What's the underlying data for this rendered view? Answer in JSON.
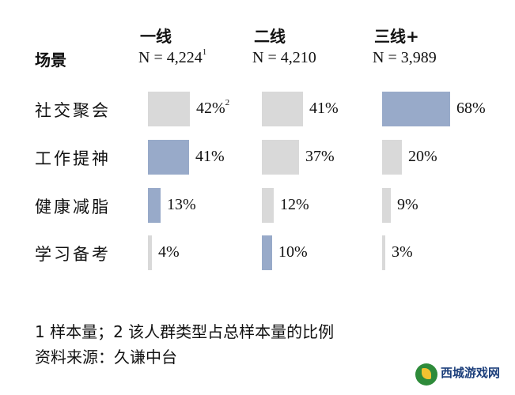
{
  "chart_data": {
    "type": "bar",
    "row_header": "场景",
    "categories": [
      "社交聚会",
      "工作提神",
      "健康减脂",
      "学习备考"
    ],
    "series": [
      {
        "name": "一线",
        "n_label": "N = 4,224",
        "n_sup": "1",
        "values": [
          42,
          41,
          13,
          4
        ],
        "value_labels": [
          "42%",
          "41%",
          "13%",
          "4%"
        ],
        "highlight": [
          false,
          true,
          true,
          false
        ]
      },
      {
        "name": "二线",
        "n_label": "N = 4,210",
        "n_sup": "",
        "values": [
          41,
          37,
          12,
          10
        ],
        "value_labels": [
          "41%",
          "37%",
          "12%",
          "10%"
        ],
        "highlight": [
          false,
          false,
          false,
          true
        ]
      },
      {
        "name": "三线+",
        "n_label": "N = 3,989",
        "n_sup": "",
        "values": [
          68,
          20,
          9,
          3
        ],
        "value_labels": [
          "68%",
          "20%",
          "9%",
          "3%"
        ],
        "highlight": [
          true,
          false,
          false,
          false
        ]
      }
    ],
    "first_value_sup": "2",
    "colors": {
      "highlight": "#98aac9",
      "normal": "#d9d9d9"
    }
  },
  "notes": {
    "line1": "1 样本量；2 该人群类型占总样本量的比例",
    "line2": "资料来源：久谦中台"
  },
  "watermark": {
    "text": "西城游戏网"
  }
}
